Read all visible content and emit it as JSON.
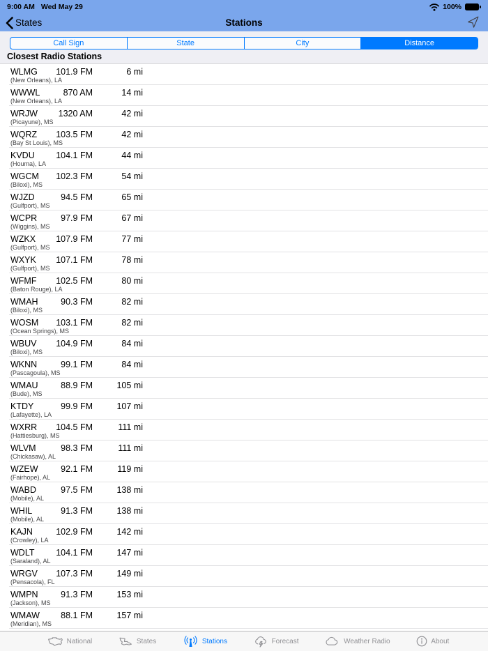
{
  "status_bar": {
    "time": "9:00 AM",
    "date": "Wed May 29",
    "battery_percent": "100%",
    "wifi_icon": "wifi-icon",
    "battery_icon": "battery-icon"
  },
  "nav_bar": {
    "back_label": "States",
    "title": "Stations",
    "action_icon": "location-arrow-icon"
  },
  "segmented": {
    "options": [
      "Call Sign",
      "State",
      "City",
      "Distance"
    ],
    "selected": "Distance"
  },
  "section_header": "Closest Radio Stations",
  "stations": [
    {
      "call_sign": "WLMG",
      "frequency": "101.9 FM",
      "distance": "6 mi",
      "location": "(New Orleans), LA"
    },
    {
      "call_sign": "WWWL",
      "frequency": "870 AM",
      "distance": "14 mi",
      "location": "(New Orleans), LA"
    },
    {
      "call_sign": "WRJW",
      "frequency": "1320 AM",
      "distance": "42 mi",
      "location": "(Picayune), MS"
    },
    {
      "call_sign": "WQRZ",
      "frequency": "103.5 FM",
      "distance": "42 mi",
      "location": "(Bay St Louis), MS"
    },
    {
      "call_sign": "KVDU",
      "frequency": "104.1 FM",
      "distance": "44 mi",
      "location": "(Houma), LA"
    },
    {
      "call_sign": "WGCM",
      "frequency": "102.3 FM",
      "distance": "54 mi",
      "location": "(Biloxi), MS"
    },
    {
      "call_sign": "WJZD",
      "frequency": "94.5 FM",
      "distance": "65 mi",
      "location": "(Gulfport), MS"
    },
    {
      "call_sign": "WCPR",
      "frequency": "97.9 FM",
      "distance": "67 mi",
      "location": "(Wiggins), MS"
    },
    {
      "call_sign": "WZKX",
      "frequency": "107.9 FM",
      "distance": "77 mi",
      "location": "(Gulfport), MS"
    },
    {
      "call_sign": "WXYK",
      "frequency": "107.1 FM",
      "distance": "78 mi",
      "location": "(Gulfport), MS"
    },
    {
      "call_sign": "WFMF",
      "frequency": "102.5 FM",
      "distance": "80 mi",
      "location": "(Baton Rouge), LA"
    },
    {
      "call_sign": "WMAH",
      "frequency": "90.3 FM",
      "distance": "82 mi",
      "location": "(Biloxi), MS"
    },
    {
      "call_sign": "WOSM",
      "frequency": "103.1 FM",
      "distance": "82 mi",
      "location": "(Ocean Springs), MS"
    },
    {
      "call_sign": "WBUV",
      "frequency": "104.9 FM",
      "distance": "84 mi",
      "location": "(Biloxi), MS"
    },
    {
      "call_sign": "WKNN",
      "frequency": "99.1 FM",
      "distance": "84 mi",
      "location": "(Pascagoula), MS"
    },
    {
      "call_sign": "WMAU",
      "frequency": "88.9 FM",
      "distance": "105 mi",
      "location": "(Bude), MS"
    },
    {
      "call_sign": "KTDY",
      "frequency": "99.9 FM",
      "distance": "107 mi",
      "location": "(Lafayette), LA"
    },
    {
      "call_sign": "WXRR",
      "frequency": "104.5 FM",
      "distance": "111 mi",
      "location": "(Hattiesburg), MS"
    },
    {
      "call_sign": "WLVM",
      "frequency": "98.3 FM",
      "distance": "111 mi",
      "location": "(Chickasaw), AL"
    },
    {
      "call_sign": "WZEW",
      "frequency": "92.1 FM",
      "distance": "119 mi",
      "location": "(Fairhope), AL"
    },
    {
      "call_sign": "WABD",
      "frequency": "97.5 FM",
      "distance": "138 mi",
      "location": "(Mobile), AL"
    },
    {
      "call_sign": "WHIL",
      "frequency": "91.3 FM",
      "distance": "138 mi",
      "location": "(Mobile), AL"
    },
    {
      "call_sign": "KAJN",
      "frequency": "102.9 FM",
      "distance": "142 mi",
      "location": "(Crowley), LA"
    },
    {
      "call_sign": "WDLT",
      "frequency": "104.1 FM",
      "distance": "147 mi",
      "location": "(Saraland), AL"
    },
    {
      "call_sign": "WRGV",
      "frequency": "107.3 FM",
      "distance": "149 mi",
      "location": "(Pensacola), FL"
    },
    {
      "call_sign": "WMPN",
      "frequency": "91.3 FM",
      "distance": "153 mi",
      "location": "(Jackson), MS"
    },
    {
      "call_sign": "WMAW",
      "frequency": "88.1 FM",
      "distance": "157 mi",
      "location": "(Meridian), MS"
    }
  ],
  "tab_bar": {
    "tabs": [
      {
        "label": "National",
        "icon": "us-map-icon",
        "selected": false
      },
      {
        "label": "States",
        "icon": "state-shape-icon",
        "selected": false
      },
      {
        "label": "Stations",
        "icon": "antenna-icon",
        "selected": true
      },
      {
        "label": "Forecast",
        "icon": "storm-cloud-icon",
        "selected": false
      },
      {
        "label": "Weather Radio",
        "icon": "cloud-icon",
        "selected": false
      },
      {
        "label": "About",
        "icon": "info-icon",
        "selected": false
      }
    ]
  },
  "colors": {
    "accent": "#007AFF",
    "chrome_blue": "#7AA6EC",
    "background": "#EFEFF4",
    "row_separator": "#E2E2E4",
    "tab_inactive": "#919195"
  }
}
